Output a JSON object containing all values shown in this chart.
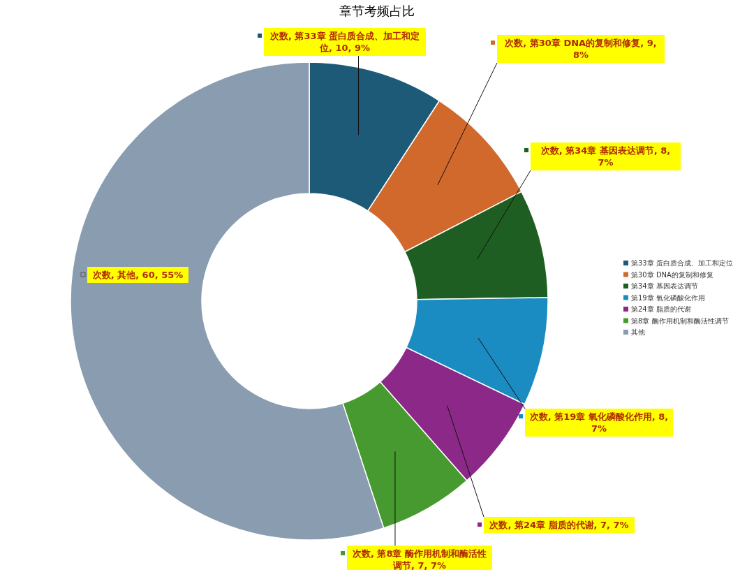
{
  "chart_data": {
    "type": "donut",
    "title": "章节考频占比",
    "categories": [
      "第33章 蛋白质合成、加工和定位",
      "第30章 DNA的复制和修复",
      "第34章 基因表达调节",
      "第19章 氧化磷酸化作用",
      "第24章 脂质的代谢",
      "第8章 酶作用机制和酶活性调节",
      "其他"
    ],
    "values": [
      10,
      9,
      8,
      8,
      7,
      7,
      60
    ],
    "colors": [
      "#1d5a78",
      "#d2692c",
      "#1f5e22",
      "#1a8cc2",
      "#8c2887",
      "#479a2f",
      "#8a9caf"
    ],
    "value_labels": [
      "次数, 第33章 蛋白质合成、加工和定位, 10, 9%",
      "次数, 第30章 DNA的复制和修复, 9, 8%",
      "次数, 第34章 基因表达调节, 8, 7%",
      "次数, 第19章 氧化磷酸化作用, 8, 7%",
      "次数, 第24章 脂质的代谢, 7, 7%",
      "次数, 第8章 酶作用机制和酶活性调节, 7, 7%",
      "次数, 其他, 60, 55%"
    ],
    "legend": "right"
  }
}
